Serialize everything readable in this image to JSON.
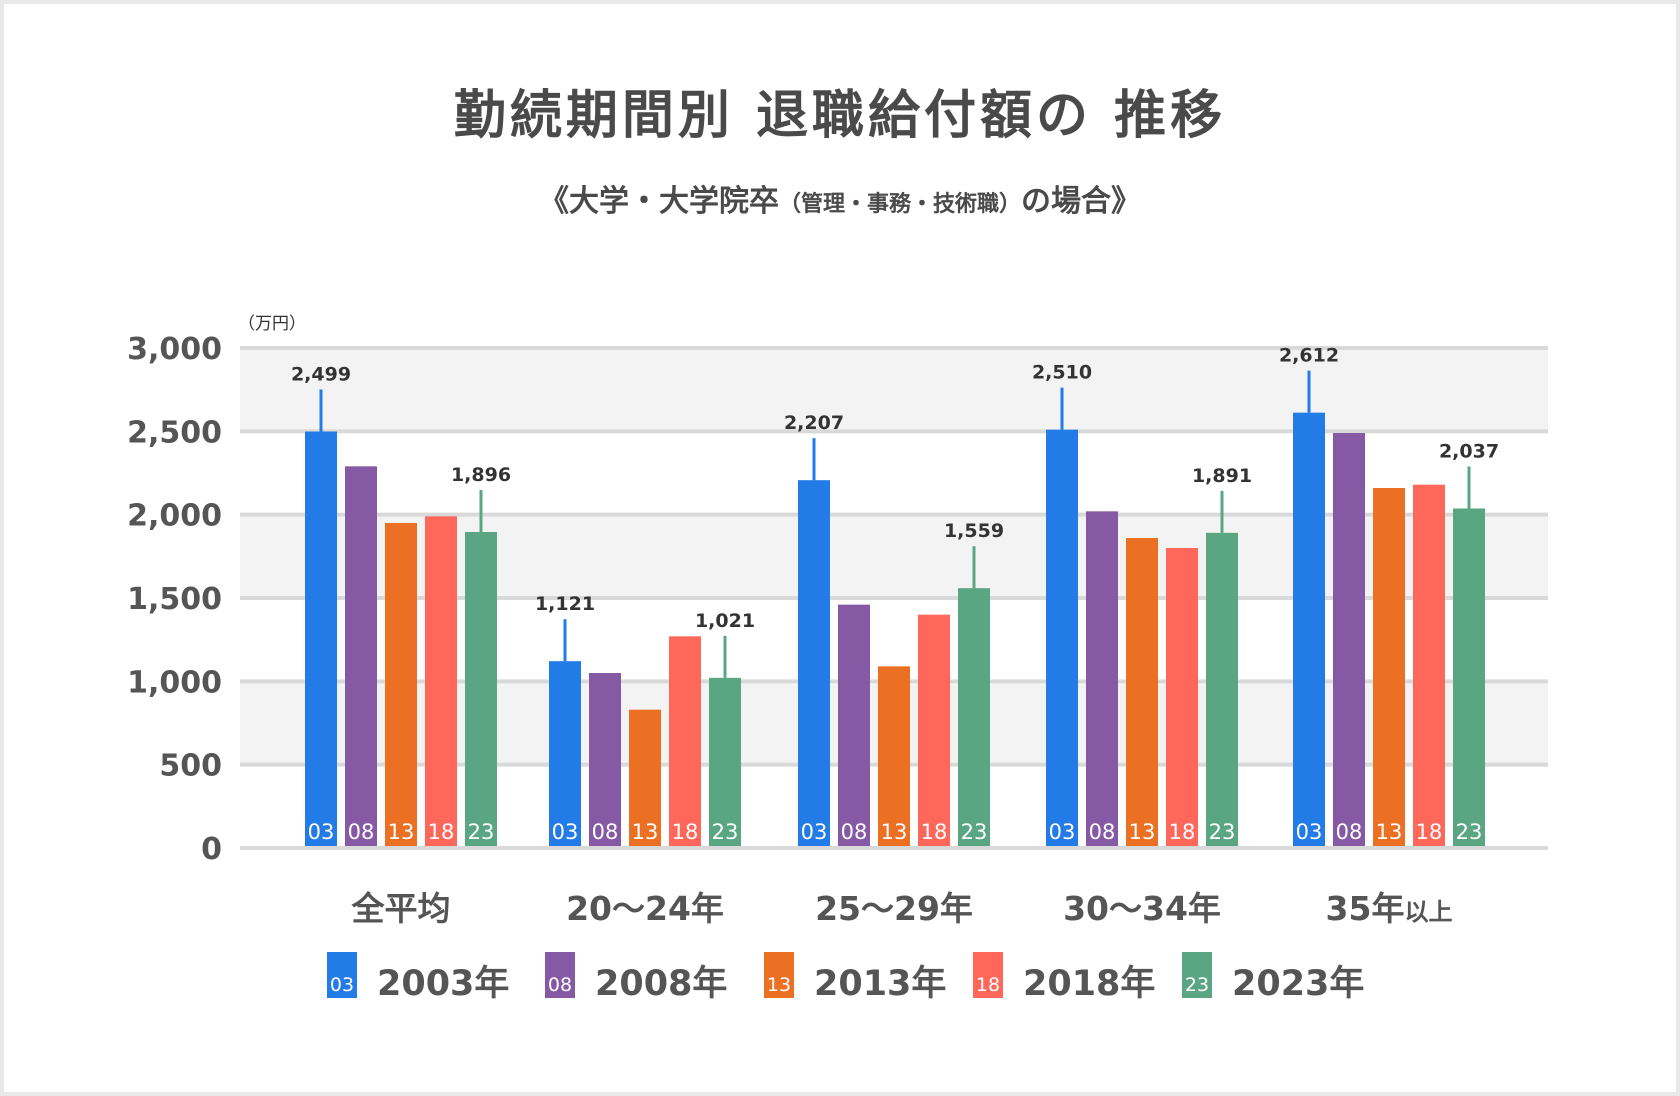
{
  "chart_data": {
    "type": "bar",
    "title": "勤続期間別 退職給付額の 推移",
    "subtitle": {
      "main_left": "《大学・大学院卒",
      "paren": "（管理・事務・技術職）",
      "main_right": "の場合》"
    },
    "unit_label": "（万円）",
    "ylim": [
      0,
      3000
    ],
    "yticks": [
      "0",
      "500",
      "1,000",
      "1,500",
      "2,000",
      "2,500",
      "3,000"
    ],
    "ytick_values": [
      0,
      500,
      1000,
      1500,
      2000,
      2500,
      3000
    ],
    "grid": true,
    "categories": [
      {
        "main": "全平均",
        "suffix": ""
      },
      {
        "main": "20～24年",
        "suffix": ""
      },
      {
        "main": "25～29年",
        "suffix": ""
      },
      {
        "main": "30～34年",
        "suffix": ""
      },
      {
        "main": "35年",
        "suffix": "以上"
      }
    ],
    "series": [
      {
        "name": "2003年",
        "code": "03",
        "color": "#237BE8",
        "values": [
          2499,
          1121,
          2207,
          2510,
          2612
        ],
        "labels": [
          "2,499",
          "1,121",
          "2,207",
          "2,510",
          "2,612"
        ]
      },
      {
        "name": "2008年",
        "code": "08",
        "color": "#8659A4",
        "values": [
          2290,
          1050,
          1460,
          2020,
          2490
        ],
        "labels": null
      },
      {
        "name": "2013年",
        "code": "13",
        "color": "#EC7024",
        "values": [
          1950,
          830,
          1090,
          1860,
          2160
        ],
        "labels": null
      },
      {
        "name": "2018年",
        "code": "18",
        "color": "#FF675A",
        "values": [
          1990,
          1270,
          1400,
          1800,
          2180
        ],
        "labels": null
      },
      {
        "name": "2023年",
        "code": "23",
        "color": "#5AA582",
        "values": [
          1896,
          1021,
          1559,
          1891,
          2037
        ],
        "labels": [
          "1,896",
          "1,021",
          "1,559",
          "1,891",
          "2,037"
        ]
      }
    ],
    "legend_placement": "bottom",
    "colors": {
      "text": "#4a4a4a",
      "grid": "#d9d9d9",
      "band": "#f3f3f3"
    }
  }
}
